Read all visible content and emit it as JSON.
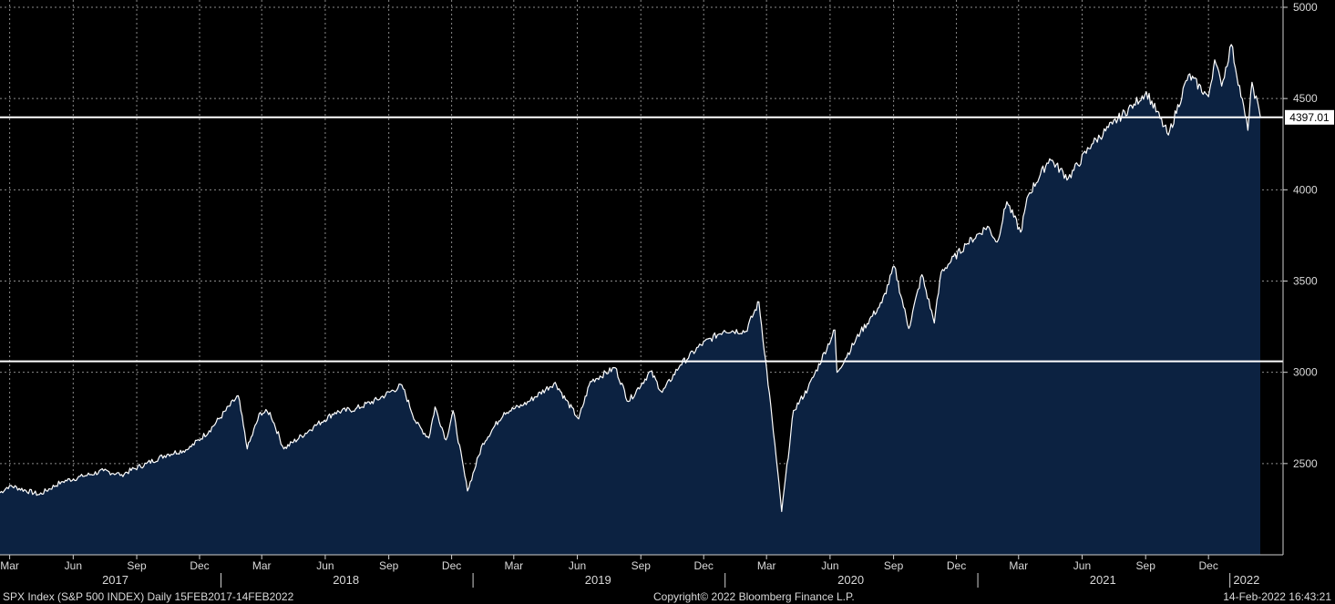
{
  "chart_data": {
    "type": "area",
    "y_range": [
      2000,
      5000
    ],
    "y_ticks": [
      2500,
      3000,
      3500,
      4000,
      4500,
      5000
    ],
    "y_axis_side": "right",
    "grid": true,
    "x_range": [
      "2017-02-15",
      "2022-02-14"
    ],
    "month_ticks": [
      {
        "label": "Mar",
        "date": "2017-03-01"
      },
      {
        "label": "Jun",
        "date": "2017-06-01"
      },
      {
        "label": "Sep",
        "date": "2017-09-01"
      },
      {
        "label": "Dec",
        "date": "2017-12-01"
      },
      {
        "label": "Mar",
        "date": "2018-03-01"
      },
      {
        "label": "Jun",
        "date": "2018-06-01"
      },
      {
        "label": "Sep",
        "date": "2018-09-01"
      },
      {
        "label": "Dec",
        "date": "2018-12-01"
      },
      {
        "label": "Mar",
        "date": "2019-03-01"
      },
      {
        "label": "Jun",
        "date": "2019-06-01"
      },
      {
        "label": "Sep",
        "date": "2019-09-01"
      },
      {
        "label": "Dec",
        "date": "2019-12-01"
      },
      {
        "label": "Mar",
        "date": "2020-03-01"
      },
      {
        "label": "Jun",
        "date": "2020-06-01"
      },
      {
        "label": "Sep",
        "date": "2020-09-01"
      },
      {
        "label": "Dec",
        "date": "2020-12-01"
      },
      {
        "label": "Mar",
        "date": "2021-03-01"
      },
      {
        "label": "Jun",
        "date": "2021-06-01"
      },
      {
        "label": "Sep",
        "date": "2021-09-01"
      },
      {
        "label": "Dec",
        "date": "2021-12-01"
      }
    ],
    "year_labels": [
      {
        "label": "2017",
        "date": "2017-08-01",
        "boundary": null
      },
      {
        "label": "2018",
        "date": "2018-07-01",
        "boundary": "2018-01-01"
      },
      {
        "label": "2019",
        "date": "2019-07-01",
        "boundary": "2019-01-01"
      },
      {
        "label": "2020",
        "date": "2020-07-01",
        "boundary": "2020-01-01"
      },
      {
        "label": "2021",
        "date": "2021-07-01",
        "boundary": "2021-01-01"
      },
      {
        "label": "2022",
        "date": "2022-01-25",
        "boundary": "2022-01-01"
      }
    ],
    "horizontal_lines": [
      {
        "value": 4397.01,
        "label": "4397.01"
      },
      {
        "value": 3060,
        "label": ""
      }
    ],
    "series": [
      {
        "color": "#ffffff",
        "fill": "#0c2241",
        "points": [
          [
            "2017-02-15",
            2340
          ],
          [
            "2017-03-01",
            2380
          ],
          [
            "2017-04-13",
            2330
          ],
          [
            "2017-05-15",
            2400
          ],
          [
            "2017-06-15",
            2430
          ],
          [
            "2017-07-15",
            2460
          ],
          [
            "2017-08-10",
            2440
          ],
          [
            "2017-09-15",
            2500
          ],
          [
            "2017-10-15",
            2550
          ],
          [
            "2017-11-15",
            2580
          ],
          [
            "2017-12-15",
            2680
          ],
          [
            "2018-01-26",
            2872
          ],
          [
            "2018-02-08",
            2580
          ],
          [
            "2018-02-27",
            2780
          ],
          [
            "2018-03-13",
            2780
          ],
          [
            "2018-04-02",
            2580
          ],
          [
            "2018-05-15",
            2700
          ],
          [
            "2018-06-15",
            2780
          ],
          [
            "2018-07-15",
            2800
          ],
          [
            "2018-08-15",
            2850
          ],
          [
            "2018-09-20",
            2930
          ],
          [
            "2018-10-11",
            2720
          ],
          [
            "2018-10-29",
            2640
          ],
          [
            "2018-11-07",
            2810
          ],
          [
            "2018-11-23",
            2630
          ],
          [
            "2018-12-03",
            2790
          ],
          [
            "2018-12-24",
            2350
          ],
          [
            "2019-01-15",
            2610
          ],
          [
            "2019-02-15",
            2780
          ],
          [
            "2019-03-15",
            2820
          ],
          [
            "2019-04-30",
            2945
          ],
          [
            "2019-05-15",
            2850
          ],
          [
            "2019-06-03",
            2745
          ],
          [
            "2019-06-20",
            2950
          ],
          [
            "2019-07-26",
            3025
          ],
          [
            "2019-08-14",
            2840
          ],
          [
            "2019-09-15",
            3005
          ],
          [
            "2019-10-02",
            2890
          ],
          [
            "2019-10-28",
            3040
          ],
          [
            "2019-11-27",
            3150
          ],
          [
            "2019-12-31",
            3230
          ],
          [
            "2020-01-31",
            3225
          ],
          [
            "2020-02-19",
            3386
          ],
          [
            "2020-03-09",
            2750
          ],
          [
            "2020-03-23",
            2237
          ],
          [
            "2020-04-09",
            2790
          ],
          [
            "2020-04-30",
            2910
          ],
          [
            "2020-06-08",
            3232
          ],
          [
            "2020-06-11",
            3000
          ],
          [
            "2020-07-15",
            3220
          ],
          [
            "2020-08-15",
            3380
          ],
          [
            "2020-09-02",
            3580
          ],
          [
            "2020-09-23",
            3240
          ],
          [
            "2020-10-12",
            3535
          ],
          [
            "2020-10-30",
            3270
          ],
          [
            "2020-11-09",
            3550
          ],
          [
            "2020-12-15",
            3700
          ],
          [
            "2021-01-15",
            3800
          ],
          [
            "2021-01-29",
            3714
          ],
          [
            "2021-02-12",
            3935
          ],
          [
            "2021-03-04",
            3768
          ],
          [
            "2021-03-15",
            3970
          ],
          [
            "2021-04-15",
            4170
          ],
          [
            "2021-05-12",
            4063
          ],
          [
            "2021-06-15",
            4250
          ],
          [
            "2021-07-15",
            4360
          ],
          [
            "2021-08-15",
            4470
          ],
          [
            "2021-09-02",
            4537
          ],
          [
            "2021-10-04",
            4300
          ],
          [
            "2021-11-02",
            4630
          ],
          [
            "2021-12-01",
            4510
          ],
          [
            "2021-12-10",
            4712
          ],
          [
            "2021-12-20",
            4568
          ],
          [
            "2022-01-03",
            4796
          ],
          [
            "2022-01-27",
            4326
          ],
          [
            "2022-02-02",
            4589
          ],
          [
            "2022-02-14",
            4401
          ]
        ]
      }
    ]
  },
  "footer": {
    "left": "SPX Index (S&P 500 INDEX)  Daily 15FEB2017-14FEB2022",
    "center": "Copyright© 2022 Bloomberg Finance L.P.",
    "right": "14-Feb-2022 16:43:21"
  }
}
